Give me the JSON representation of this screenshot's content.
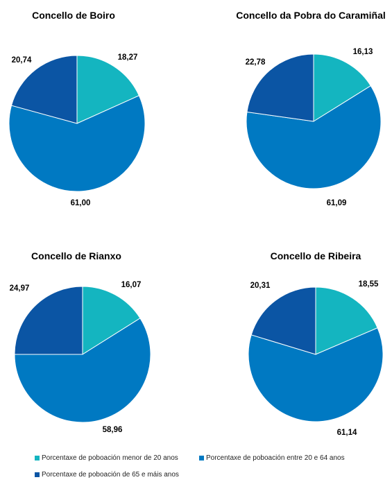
{
  "chart_data": [
    {
      "type": "pie",
      "title": "Concello de Boiro",
      "categories": [
        "Porcentaxe de poboación menor de 20 anos",
        "Porcentaxe de poboación entre 20 e 64 anos",
        "Porcentaxe de poboación de 65 e máis anos"
      ],
      "values": [
        18.27,
        61.0,
        20.74
      ],
      "labels": [
        "18,27",
        "61,00",
        "20,74"
      ]
    },
    {
      "type": "pie",
      "title": "Concello da Pobra do Caramiñal",
      "categories": [
        "Porcentaxe de poboación menor de 20 anos",
        "Porcentaxe de poboación entre 20 e 64 anos",
        "Porcentaxe de poboación de 65 e máis anos"
      ],
      "values": [
        16.13,
        61.09,
        22.78
      ],
      "labels": [
        "16,13",
        "61,09",
        "22,78"
      ]
    },
    {
      "type": "pie",
      "title": "Concello de Rianxo",
      "categories": [
        "Porcentaxe de poboación menor de 20 anos",
        "Porcentaxe de poboación entre 20 e 64 anos",
        "Porcentaxe de poboación de 65 e máis anos"
      ],
      "values": [
        16.07,
        58.96,
        24.97
      ],
      "labels": [
        "16,07",
        "58,96",
        "24,97"
      ]
    },
    {
      "type": "pie",
      "title": "Concello de Ribeira",
      "categories": [
        "Porcentaxe de poboación menor de 20 anos",
        "Porcentaxe de poboación entre 20 e 64 anos",
        "Porcentaxe de poboación de 65 e máis anos"
      ],
      "values": [
        18.55,
        61.14,
        20.31
      ],
      "labels": [
        "18,55",
        "61,14",
        "20,31"
      ]
    }
  ],
  "legend": [
    {
      "label": "Porcentaxe de poboación menor de 20 anos",
      "color": "#14b5c0"
    },
    {
      "label": "Porcentaxe de poboación entre 20 e 64 anos",
      "color": "#0079c2"
    },
    {
      "label": "Porcentaxe de poboación de 65 e máis anos",
      "color": "#0b55a4"
    }
  ],
  "colors": [
    "#14b5c0",
    "#0079c2",
    "#0b55a4"
  ]
}
